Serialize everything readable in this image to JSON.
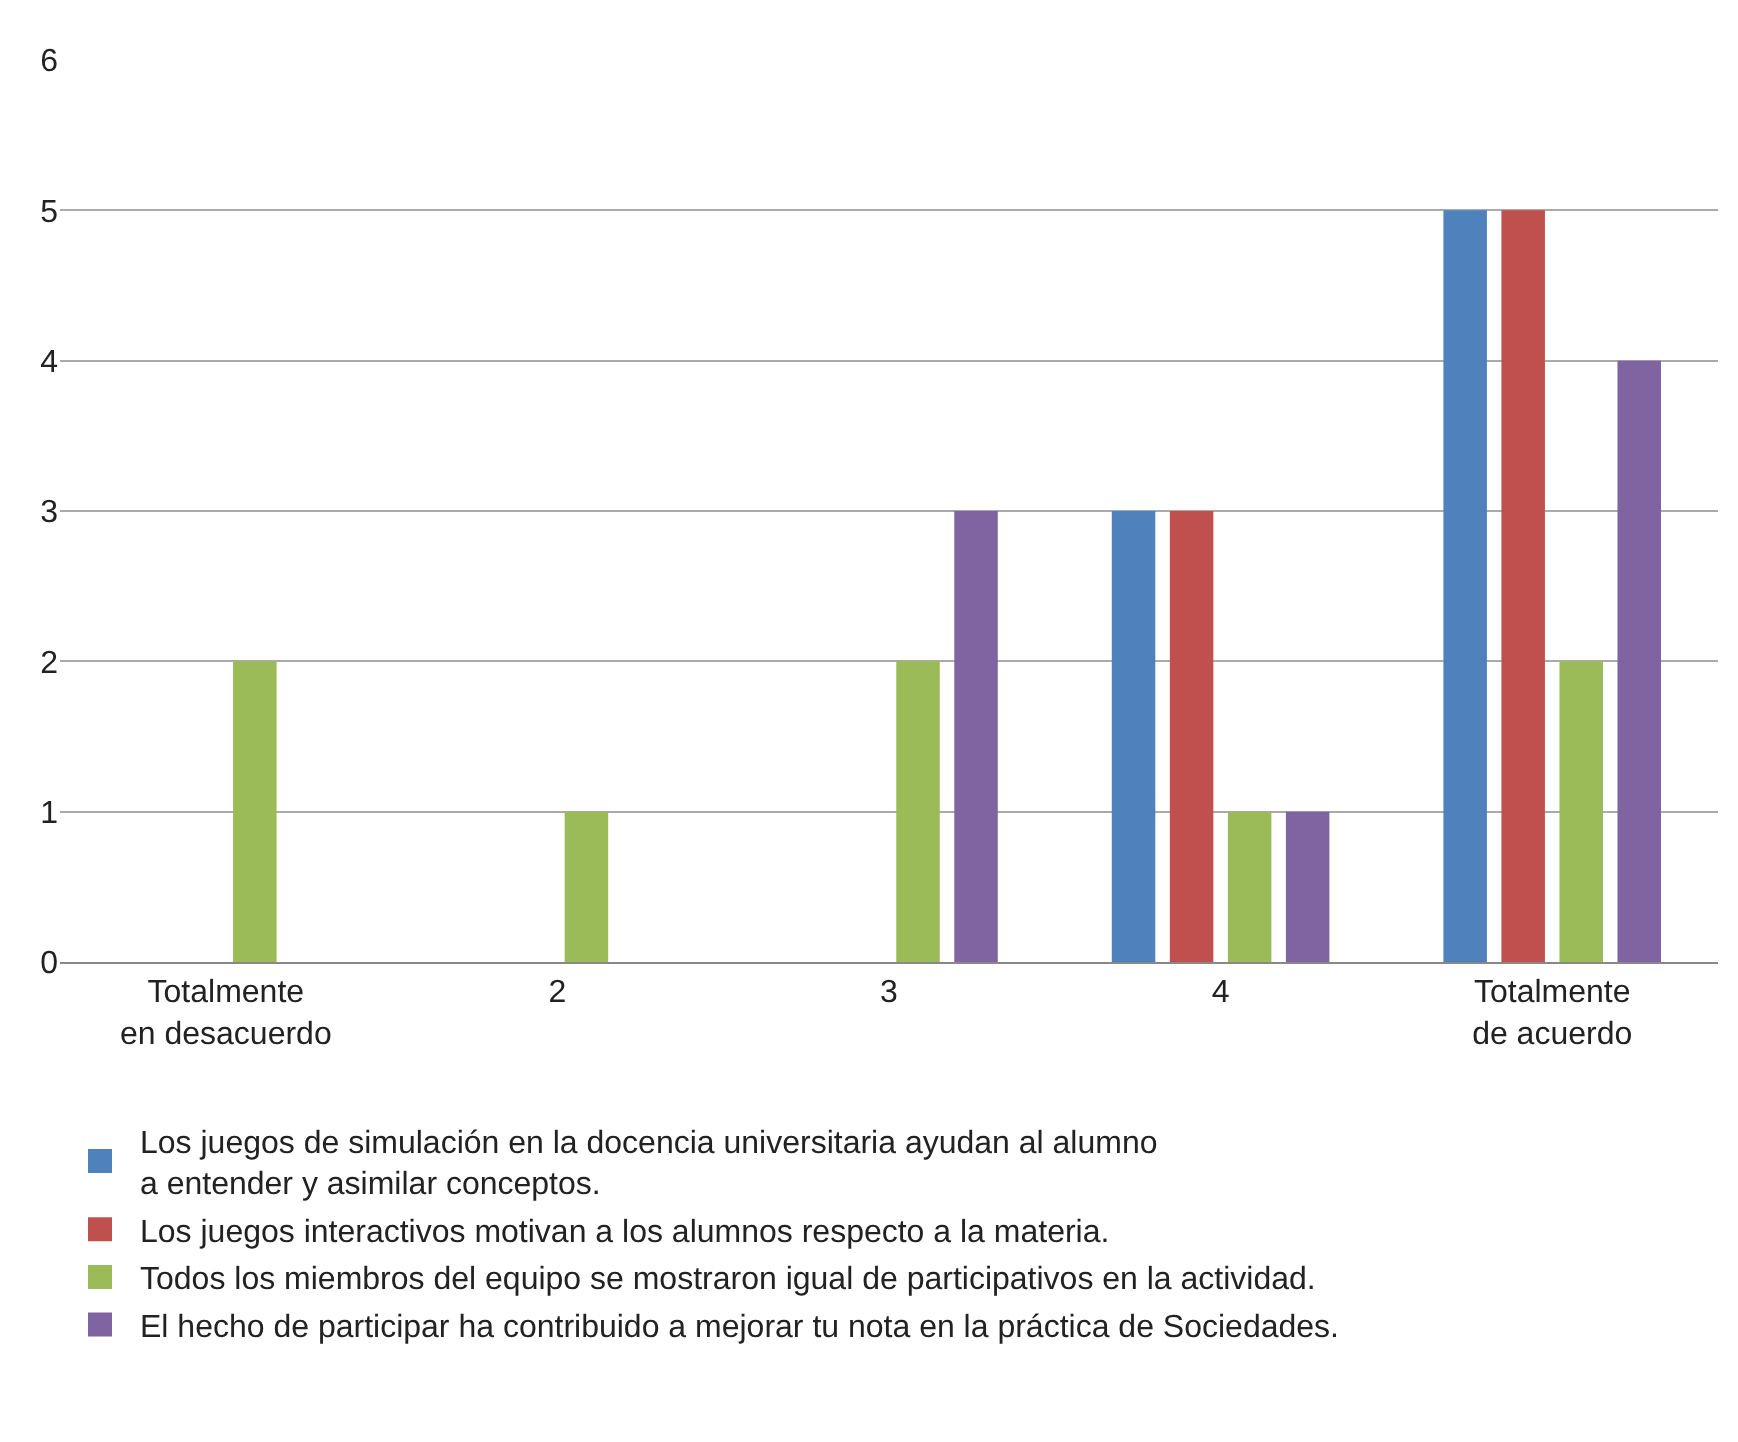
{
  "chart_data": {
    "type": "bar",
    "categories": [
      "Totalmente\nen desacuerdo",
      "2",
      "3",
      "4",
      "Totalmente\nde acuerdo"
    ],
    "series": [
      {
        "name": "Los juegos de simulación en la docencia universitaria ayudan al alumno\na entender y asimilar conceptos.",
        "color": "#4f81bd",
        "values": [
          0,
          0,
          0,
          3,
          5
        ]
      },
      {
        "name": "Los juegos interactivos motivan a los alumnos respecto a la materia.",
        "color": "#c0504d",
        "values": [
          0,
          0,
          0,
          3,
          5
        ]
      },
      {
        "name": "Todos los miembros del equipo se mostraron igual de participativos en la actividad.",
        "color": "#9bbb59",
        "values": [
          2,
          1,
          2,
          1,
          2
        ]
      },
      {
        "name": "El hecho de participar ha contribuido a mejorar tu nota en la práctica de Sociedades.",
        "color": "#8064a2",
        "values": [
          0,
          0,
          3,
          1,
          4
        ]
      }
    ],
    "ylim": [
      0,
      6
    ],
    "yticks": [
      0,
      1,
      2,
      3,
      4,
      5,
      6
    ],
    "grid": "y",
    "legend": "bottom"
  }
}
